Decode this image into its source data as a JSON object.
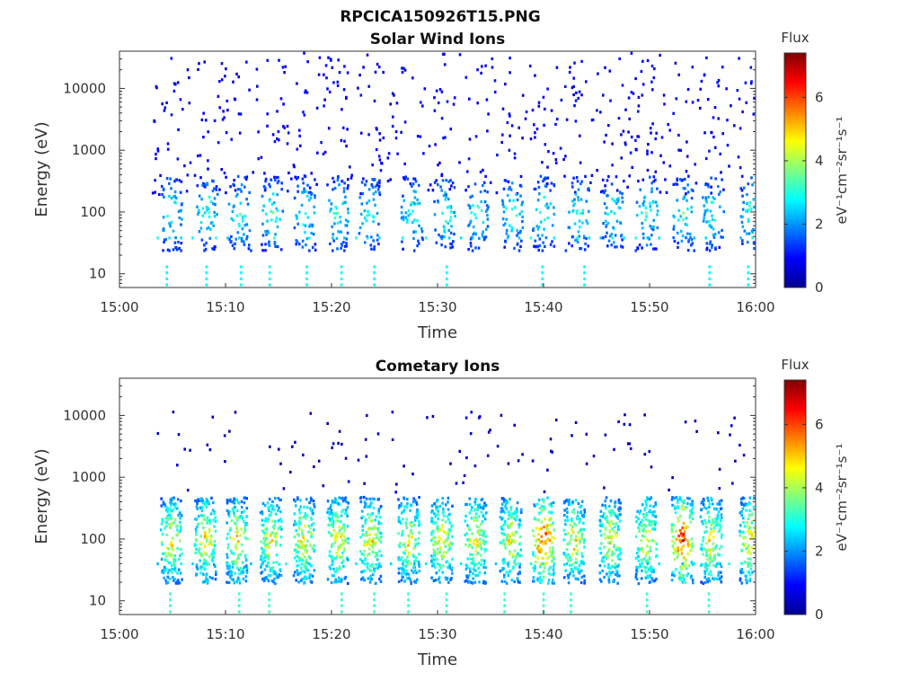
{
  "chart_data": [
    {
      "type": "heatmap",
      "figure_title": "RPCICA150926T15.PNG",
      "title": "Solar Wind Ions",
      "xlabel": "Time",
      "ylabel": "Energy (eV)",
      "x_ticks": [
        "15:00",
        "15:10",
        "15:20",
        "15:30",
        "15:40",
        "15:50",
        "16:00"
      ],
      "y_ticks": [
        "10",
        "100",
        "1000",
        "10000"
      ],
      "yscale": "log",
      "xlim": [
        "15:00",
        "16:00"
      ],
      "ylim": [
        6,
        40000
      ],
      "colorbar": {
        "title": "Flux",
        "label": "eV⁻¹cm⁻²sr⁻¹s⁻¹",
        "ticks": [
          "0",
          "2",
          "4",
          "6"
        ],
        "range": [
          0,
          7.4
        ],
        "colormap": "jet"
      },
      "bursts_minutes": [
        4.8,
        8.2,
        11.2,
        14.3,
        17.4,
        20.5,
        23.5,
        27.5,
        30.6,
        33.7,
        37.0,
        39.9,
        43.2,
        46.5,
        49.7,
        53.1,
        55.9,
        59.5
      ],
      "burst_flux_peak": 3.5,
      "burst_energy_range_eV": [
        25,
        400
      ],
      "background_flux": 1.0,
      "background_energy_range_eV": [
        200,
        40000
      ]
    },
    {
      "type": "heatmap",
      "title": "Cometary Ions",
      "xlabel": "Time",
      "ylabel": "Energy (eV)",
      "x_ticks": [
        "15:00",
        "15:10",
        "15:20",
        "15:30",
        "15:40",
        "15:50",
        "16:00"
      ],
      "y_ticks": [
        "10",
        "100",
        "1000",
        "10000"
      ],
      "yscale": "log",
      "xlim": [
        "15:00",
        "16:00"
      ],
      "ylim": [
        6,
        40000
      ],
      "colorbar": {
        "title": "Flux",
        "label": "eV⁻¹cm⁻²sr⁻¹s⁻¹",
        "ticks": [
          "0",
          "2",
          "4",
          "6"
        ],
        "range": [
          0,
          7.4
        ],
        "colormap": "jet"
      },
      "bursts_minutes": [
        4.8,
        8.0,
        11.0,
        14.2,
        17.3,
        20.5,
        23.6,
        27.2,
        30.3,
        33.5,
        36.8,
        39.9,
        42.8,
        46.2,
        49.6,
        53.0,
        55.7,
        59.4
      ],
      "burst_flux_peak": 5.3,
      "burst_flux_peak_max": 6.8,
      "burst_energy_range_eV": [
        20,
        500
      ],
      "background_flux": 0.6,
      "background_energy_range_eV": [
        600,
        12000
      ]
    }
  ]
}
